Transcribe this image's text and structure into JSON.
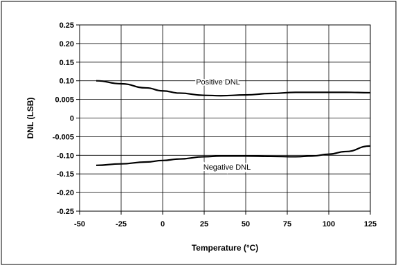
{
  "chart_data": {
    "type": "line",
    "xlabel": "Temperature (°C)",
    "ylabel": "DNL (LSB)",
    "xlim": [
      -50,
      125
    ],
    "ylim_ticks": [
      "0.25",
      "0.20",
      "0.15",
      "0.10",
      "0.005",
      "0",
      "-0.005",
      "-0.10",
      "-0.15",
      "-0.20",
      "-0.25"
    ],
    "x_ticks": [
      "-50",
      "-25",
      "0",
      "25",
      "50",
      "75",
      "100",
      "125"
    ],
    "grid": true,
    "legend": "none",
    "series": [
      {
        "name": "Positive DNL",
        "x": [
          -40,
          -25,
          -10,
          0,
          10,
          25,
          35,
          50,
          65,
          80,
          95,
          110,
          125
        ],
        "y": [
          0.1,
          0.092,
          0.081,
          0.073,
          0.067,
          0.061,
          0.06,
          0.062,
          0.066,
          0.069,
          0.069,
          0.069,
          0.068
        ]
      },
      {
        "name": "Negative DNL",
        "x": [
          -40,
          -25,
          -10,
          0,
          10,
          25,
          35,
          50,
          65,
          80,
          90,
          100,
          110,
          125
        ],
        "y": [
          -0.127,
          -0.123,
          -0.118,
          -0.114,
          -0.11,
          -0.104,
          -0.102,
          -0.102,
          -0.103,
          -0.104,
          -0.102,
          -0.097,
          -0.09,
          -0.075
        ]
      }
    ],
    "annotations": [
      "Positive DNL",
      "Negative DNL"
    ]
  },
  "style": {
    "line_color": "#000000",
    "grid_color": "#000000",
    "background": "#ffffff"
  }
}
